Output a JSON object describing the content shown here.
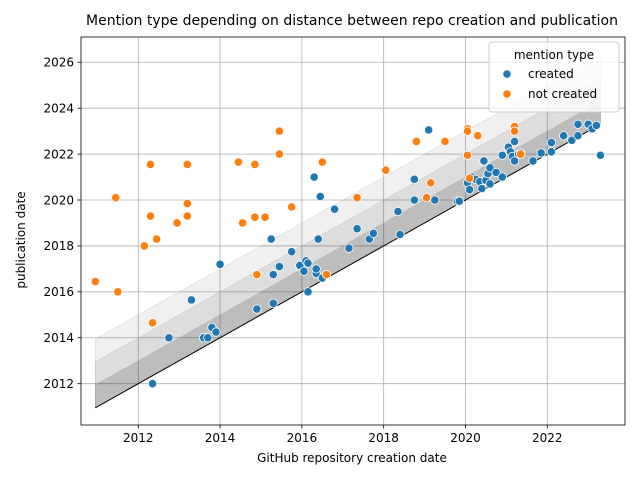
{
  "chart_data": {
    "type": "scatter",
    "title": "Mention type depending on distance between repo creation and publication",
    "xlabel": "GitHub repository creation date",
    "ylabel": "publication date",
    "xlim": [
      2010.6,
      2023.9
    ],
    "ylim": [
      2010.2,
      2027.1
    ],
    "xticks": [
      2012,
      2014,
      2016,
      2018,
      2020,
      2022
    ],
    "yticks": [
      2012,
      2014,
      2016,
      2018,
      2020,
      2022,
      2024,
      2026
    ],
    "grid": true,
    "legend": {
      "title": "mention type",
      "placement": "top-right"
    },
    "bands": [
      {
        "name": "",
        "offset_years": 3,
        "color": "#000000",
        "opacity": 0.06
      },
      {
        "name": "",
        "offset_years": 2,
        "color": "#000000",
        "opacity": 0.08
      },
      {
        "name": "",
        "offset_years": 1,
        "color": "#000000",
        "opacity": 0.14
      }
    ],
    "diagonal": {
      "color": "#000000"
    },
    "series": [
      {
        "name": "created",
        "color": "#1f77b4",
        "points": [
          [
            2012.35,
            2012.0
          ],
          [
            2012.75,
            2014.0
          ],
          [
            2013.3,
            2015.65
          ],
          [
            2013.6,
            2014.0
          ],
          [
            2013.7,
            2014.0
          ],
          [
            2013.8,
            2014.45
          ],
          [
            2013.9,
            2014.25
          ],
          [
            2014.0,
            2017.2
          ],
          [
            2014.9,
            2015.25
          ],
          [
            2015.25,
            2018.3
          ],
          [
            2015.3,
            2015.5
          ],
          [
            2015.3,
            2016.75
          ],
          [
            2015.45,
            2017.1
          ],
          [
            2015.75,
            2017.75
          ],
          [
            2015.95,
            2017.15
          ],
          [
            2016.05,
            2016.9
          ],
          [
            2016.1,
            2017.35
          ],
          [
            2016.15,
            2017.25
          ],
          [
            2016.15,
            2016.0
          ],
          [
            2016.3,
            2021.0
          ],
          [
            2016.35,
            2016.8
          ],
          [
            2016.35,
            2017.0
          ],
          [
            2016.4,
            2018.3
          ],
          [
            2016.45,
            2020.15
          ],
          [
            2016.5,
            2016.6
          ],
          [
            2016.8,
            2019.6
          ],
          [
            2017.15,
            2017.9
          ],
          [
            2017.35,
            2018.75
          ],
          [
            2017.65,
            2018.3
          ],
          [
            2017.75,
            2018.55
          ],
          [
            2018.35,
            2019.5
          ],
          [
            2018.4,
            2018.5
          ],
          [
            2018.75,
            2020.0
          ],
          [
            2018.75,
            2020.9
          ],
          [
            2019.1,
            2023.05
          ],
          [
            2019.25,
            2020.0
          ],
          [
            2019.8,
            2019.95
          ],
          [
            2019.85,
            2019.95
          ],
          [
            2020.05,
            2020.75
          ],
          [
            2020.1,
            2020.45
          ],
          [
            2020.15,
            2021.0
          ],
          [
            2020.25,
            2020.9
          ],
          [
            2020.35,
            2020.8
          ],
          [
            2020.4,
            2020.5
          ],
          [
            2020.45,
            2021.7
          ],
          [
            2020.5,
            2020.85
          ],
          [
            2020.55,
            2021.15
          ],
          [
            2020.6,
            2020.7
          ],
          [
            2020.6,
            2021.4
          ],
          [
            2020.75,
            2021.2
          ],
          [
            2020.9,
            2021.0
          ],
          [
            2020.9,
            2021.95
          ],
          [
            2021.05,
            2022.3
          ],
          [
            2021.1,
            2022.1
          ],
          [
            2021.15,
            2021.9
          ],
          [
            2021.2,
            2022.55
          ],
          [
            2021.2,
            2021.7
          ],
          [
            2021.3,
            2022.0
          ],
          [
            2021.35,
            2022.05
          ],
          [
            2021.65,
            2021.7
          ],
          [
            2021.85,
            2022.05
          ],
          [
            2022.1,
            2022.1
          ],
          [
            2022.1,
            2022.5
          ],
          [
            2022.4,
            2022.8
          ],
          [
            2022.6,
            2022.6
          ],
          [
            2022.75,
            2023.3
          ],
          [
            2022.75,
            2022.8
          ],
          [
            2023.0,
            2023.3
          ],
          [
            2023.1,
            2023.1
          ],
          [
            2023.2,
            2023.25
          ],
          [
            2023.3,
            2021.95
          ]
        ]
      },
      {
        "name": "not created",
        "color": "#ff7f0e",
        "points": [
          [
            2010.95,
            2016.45
          ],
          [
            2011.45,
            2020.1
          ],
          [
            2011.5,
            2016.0
          ],
          [
            2012.15,
            2018.0
          ],
          [
            2012.3,
            2021.55
          ],
          [
            2012.3,
            2019.3
          ],
          [
            2012.35,
            2014.65
          ],
          [
            2012.45,
            2018.3
          ],
          [
            2012.95,
            2019.0
          ],
          [
            2013.2,
            2021.55
          ],
          [
            2013.2,
            2019.85
          ],
          [
            2013.2,
            2019.3
          ],
          [
            2014.45,
            2021.65
          ],
          [
            2014.55,
            2019.0
          ],
          [
            2014.85,
            2019.25
          ],
          [
            2014.85,
            2021.55
          ],
          [
            2014.9,
            2016.75
          ],
          [
            2015.1,
            2019.25
          ],
          [
            2015.45,
            2023.0
          ],
          [
            2015.45,
            2022.0
          ],
          [
            2015.75,
            2019.7
          ],
          [
            2016.5,
            2021.65
          ],
          [
            2016.6,
            2016.75
          ],
          [
            2017.35,
            2020.1
          ],
          [
            2018.05,
            2021.3
          ],
          [
            2018.8,
            2022.55
          ],
          [
            2019.05,
            2020.1
          ],
          [
            2019.15,
            2020.75
          ],
          [
            2019.5,
            2022.55
          ],
          [
            2020.05,
            2023.1
          ],
          [
            2020.05,
            2023.0
          ],
          [
            2020.05,
            2021.95
          ],
          [
            2020.1,
            2020.95
          ],
          [
            2020.3,
            2022.8
          ],
          [
            2021.2,
            2023.2
          ],
          [
            2021.2,
            2023.0
          ],
          [
            2021.35,
            2022.0
          ]
        ]
      }
    ]
  }
}
